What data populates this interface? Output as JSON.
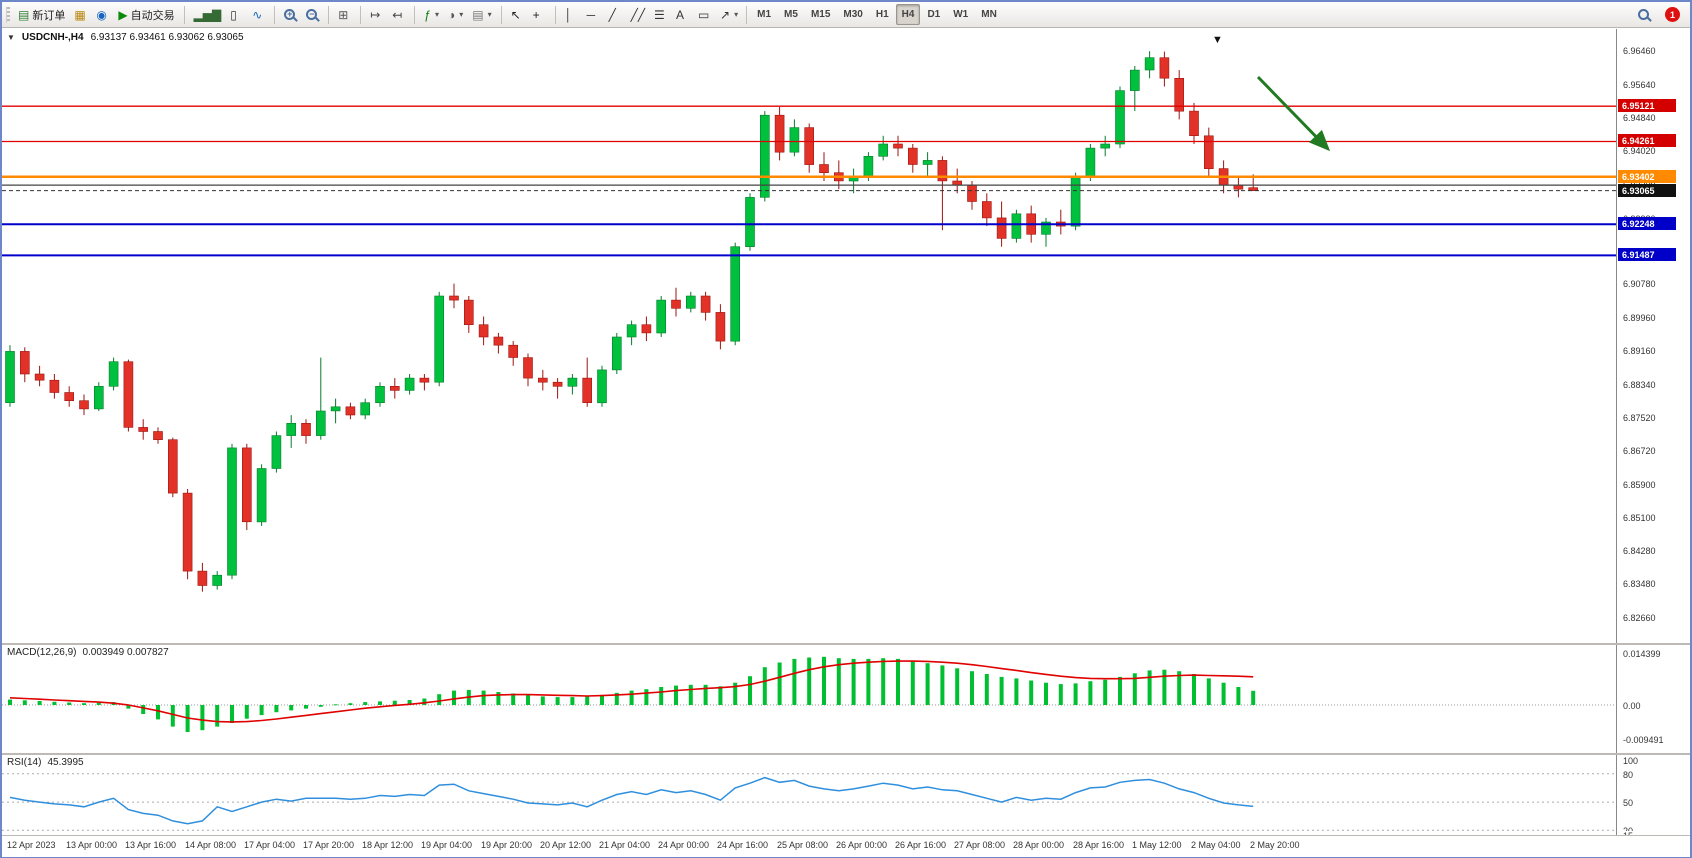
{
  "toolbar": {
    "groups": [
      {
        "buttons": [
          {
            "name": "new-order-button",
            "glyph": "▤",
            "glyph_color": "#2e7d32",
            "label": "新订单"
          },
          {
            "name": "chart-windows-button",
            "glyph": "▦",
            "glyph_color": "#b8860b"
          },
          {
            "name": "market-watch-button",
            "glyph": "◉",
            "glyph_color": "#1565c0"
          },
          {
            "name": "auto-trading-button",
            "glyph": "▶",
            "glyph_color": "#0a8a0a",
            "label": "自动交易"
          }
        ]
      },
      {
        "buttons": [
          {
            "name": "bar-chart-button",
            "glyph": "▂▅▇",
            "glyph_color": "#356a35"
          },
          {
            "name": "candlestick-chart-button",
            "glyph": "▯",
            "glyph_color": "#333"
          },
          {
            "name": "line-chart-button",
            "glyph": "∿",
            "glyph_color": "#1565c0"
          }
        ]
      },
      {
        "buttons": [
          {
            "name": "zoom-in-button",
            "mag": "+"
          },
          {
            "name": "zoom-out-button",
            "mag": "−"
          }
        ]
      },
      {
        "buttons": [
          {
            "name": "tile-windows-button",
            "glyph": "⊞",
            "glyph_color": "#555"
          }
        ]
      },
      {
        "buttons": [
          {
            "name": "auto-scroll-button",
            "glyph": "↦",
            "glyph_color": "#444"
          },
          {
            "name": "chart-shift-button",
            "glyph": "↤",
            "glyph_color": "#444"
          }
        ]
      },
      {
        "buttons": [
          {
            "name": "indicators-button",
            "glyph": "ƒ",
            "glyph_color": "#0a7a0a",
            "dropdown": true
          },
          {
            "name": "periods-button",
            "glyph": "◑",
            "glyph_color": "#555",
            "dropdown": true
          },
          {
            "name": "templates-button",
            "glyph": "▤",
            "glyph_color": "#777",
            "dropdown": true
          }
        ]
      },
      {
        "buttons": [
          {
            "name": "cursor-button",
            "glyph": "↖",
            "glyph_color": "#222"
          },
          {
            "name": "crosshair-button",
            "glyph": "+",
            "glyph_color": "#222"
          }
        ]
      },
      {
        "buttons": [
          {
            "name": "vertical-line-button",
            "glyph": "│",
            "glyph_color": "#333"
          },
          {
            "name": "horizontal-line-button",
            "glyph": "─",
            "glyph_color": "#333"
          },
          {
            "name": "trendline-button",
            "glyph": "╱",
            "glyph_color": "#333"
          },
          {
            "name": "channel-button",
            "glyph": "╱╱",
            "glyph_color": "#333"
          },
          {
            "name": "fibonacci-button",
            "glyph": "☰",
            "glyph_color": "#333"
          },
          {
            "name": "text-button",
            "glyph": "A",
            "glyph_color": "#333"
          },
          {
            "name": "label-button",
            "glyph": "▭",
            "glyph_color": "#333"
          },
          {
            "name": "shapes-button",
            "glyph": "↗",
            "glyph_color": "#333",
            "dropdown": true
          }
        ]
      }
    ],
    "timeframes": [
      "M1",
      "M5",
      "M15",
      "M30",
      "H1",
      "H4",
      "D1",
      "W1",
      "MN"
    ],
    "active_timeframe": "H4",
    "notification_count": "1"
  },
  "chart_header": {
    "caret": "▼",
    "symbol": "USDCNH-,H4",
    "ohlc": "6.93137 6.93461 6.93062 6.93065"
  },
  "colors": {
    "bull": "#00c13e",
    "bull_wick": "#067c2c",
    "bear": "#e23127",
    "bear_wick": "#9c1510",
    "macd_histogram": "#00bf30",
    "macd_signal": "#e00000",
    "rsi_line": "#2f8fdd",
    "hline_red": "#e00000",
    "hline_orange": "#ff8a00",
    "hline_blue": "#0000cc",
    "hline_gray": "#444444",
    "current_price_badge": "#111111",
    "trend_arrow": "#217a21"
  },
  "chart_data": {
    "type": "candlestick",
    "symbol": "USDCNH",
    "timeframe": "H4",
    "price_range": [
      6.8205,
      6.97
    ],
    "price_ticks": [
      "6.96460",
      "6.95640",
      "6.94840",
      "6.94020",
      "6.93200",
      "6.92380",
      "6.91560",
      "6.90780",
      "6.89960",
      "6.89160",
      "6.88340",
      "6.87520",
      "6.86720",
      "6.85900",
      "6.85100",
      "6.84280",
      "6.83480",
      "6.82660"
    ],
    "hlines": [
      {
        "price": 6.95121,
        "label": "6.95121",
        "color": "#e00000",
        "badge": "#d40000",
        "width": 1.3
      },
      {
        "price": 6.94261,
        "label": "6.94261",
        "color": "#e00000",
        "badge": "#d40000",
        "width": 1.3
      },
      {
        "price": 6.93402,
        "label": "6.93402",
        "color": "#ff8a00",
        "badge": "#ff8a00",
        "width": 2.5
      },
      {
        "price": 6.932,
        "label": null,
        "color": "#444444",
        "width": 1.3
      },
      {
        "price": 6.92248,
        "label": "6.92248",
        "color": "#0000cc",
        "badge": "#0000c8",
        "width": 2
      },
      {
        "price": 6.91487,
        "label": "6.91487",
        "color": "#0000cc",
        "badge": "#0000c8",
        "width": 2
      }
    ],
    "current_price": {
      "value": 6.93065,
      "label": "6.93065"
    },
    "high_marker": "▼",
    "trend_arrow": {
      "color": "#217a21"
    },
    "candles": [
      [
        6.879,
        6.893,
        6.878,
        6.8915
      ],
      [
        6.8915,
        6.8925,
        6.884,
        6.886
      ],
      [
        6.886,
        6.888,
        6.883,
        6.8845
      ],
      [
        6.8845,
        6.886,
        6.88,
        6.8815
      ],
      [
        6.8815,
        6.883,
        6.878,
        6.8795
      ],
      [
        6.8795,
        6.881,
        6.876,
        6.8775
      ],
      [
        6.8775,
        6.884,
        6.877,
        6.883
      ],
      [
        6.883,
        6.89,
        6.882,
        6.889
      ],
      [
        6.889,
        6.8895,
        6.872,
        6.873
      ],
      [
        6.873,
        6.875,
        6.87,
        6.872
      ],
      [
        6.872,
        6.873,
        6.869,
        6.87
      ],
      [
        6.87,
        6.8705,
        6.856,
        6.857
      ],
      [
        6.857,
        6.858,
        6.836,
        6.838
      ],
      [
        6.838,
        6.84,
        6.833,
        6.8345
      ],
      [
        6.8345,
        6.838,
        6.8335,
        6.837
      ],
      [
        6.837,
        6.869,
        6.836,
        6.868
      ],
      [
        6.868,
        6.869,
        6.848,
        6.85
      ],
      [
        6.85,
        6.864,
        6.849,
        6.863
      ],
      [
        6.863,
        6.872,
        6.862,
        6.871
      ],
      [
        6.871,
        6.876,
        6.868,
        6.874
      ],
      [
        6.874,
        6.875,
        6.869,
        6.871
      ],
      [
        6.871,
        6.89,
        6.87,
        6.877
      ],
      [
        6.877,
        6.88,
        6.874,
        6.878
      ],
      [
        6.878,
        6.879,
        6.875,
        6.876
      ],
      [
        6.876,
        6.88,
        6.875,
        6.879
      ],
      [
        6.879,
        6.884,
        6.878,
        6.883
      ],
      [
        6.883,
        6.885,
        6.88,
        6.882
      ],
      [
        6.882,
        6.886,
        6.881,
        6.885
      ],
      [
        6.885,
        6.886,
        6.882,
        6.884
      ],
      [
        6.884,
        6.906,
        6.883,
        6.905
      ],
      [
        6.905,
        6.908,
        6.902,
        6.904
      ],
      [
        6.904,
        6.905,
        6.896,
        6.898
      ],
      [
        6.898,
        6.9,
        6.893,
        6.895
      ],
      [
        6.895,
        6.896,
        6.891,
        6.893
      ],
      [
        6.893,
        6.894,
        6.888,
        6.89
      ],
      [
        6.89,
        6.891,
        6.883,
        6.885
      ],
      [
        6.885,
        6.887,
        6.882,
        6.884
      ],
      [
        6.884,
        6.885,
        6.88,
        6.883
      ],
      [
        6.883,
        6.886,
        6.881,
        6.885
      ],
      [
        6.885,
        6.89,
        6.878,
        6.879
      ],
      [
        6.879,
        6.888,
        6.878,
        6.887
      ],
      [
        6.887,
        6.896,
        6.886,
        6.895
      ],
      [
        6.895,
        6.899,
        6.893,
        6.898
      ],
      [
        6.898,
        6.9,
        6.894,
        6.896
      ],
      [
        6.896,
        6.905,
        6.895,
        6.904
      ],
      [
        6.904,
        6.907,
        6.9,
        6.902
      ],
      [
        6.902,
        6.906,
        6.901,
        6.905
      ],
      [
        6.905,
        6.906,
        6.899,
        6.901
      ],
      [
        6.901,
        6.903,
        6.892,
        6.894
      ],
      [
        6.894,
        6.918,
        6.893,
        6.917
      ],
      [
        6.917,
        6.93,
        6.916,
        6.929
      ],
      [
        6.929,
        6.95,
        6.928,
        6.949
      ],
      [
        6.949,
        6.951,
        6.938,
        6.94
      ],
      [
        6.94,
        6.948,
        6.939,
        6.946
      ],
      [
        6.946,
        6.947,
        6.935,
        6.937
      ],
      [
        6.937,
        6.94,
        6.933,
        6.935
      ],
      [
        6.935,
        6.938,
        6.931,
        6.933
      ],
      [
        6.933,
        6.936,
        6.93,
        6.934
      ],
      [
        6.934,
        6.94,
        6.933,
        6.939
      ],
      [
        6.939,
        6.944,
        6.938,
        6.942
      ],
      [
        6.942,
        6.944,
        6.939,
        6.941
      ],
      [
        6.941,
        6.942,
        6.935,
        6.937
      ],
      [
        6.937,
        6.94,
        6.934,
        6.938
      ],
      [
        6.938,
        6.939,
        6.921,
        6.933
      ],
      [
        6.933,
        6.936,
        6.93,
        6.932
      ],
      [
        6.932,
        6.933,
        6.926,
        6.928
      ],
      [
        6.928,
        6.93,
        6.922,
        6.924
      ],
      [
        6.924,
        6.928,
        6.917,
        6.919
      ],
      [
        6.919,
        6.926,
        6.918,
        6.925
      ],
      [
        6.925,
        6.927,
        6.918,
        6.92
      ],
      [
        6.92,
        6.924,
        6.917,
        6.923
      ],
      [
        6.923,
        6.926,
        6.92,
        6.922
      ],
      [
        6.922,
        6.935,
        6.921,
        6.934
      ],
      [
        6.934,
        6.942,
        6.933,
        6.941
      ],
      [
        6.941,
        6.944,
        6.939,
        6.942
      ],
      [
        6.942,
        6.956,
        6.941,
        6.955
      ],
      [
        6.955,
        6.961,
        6.95,
        6.96
      ],
      [
        6.96,
        6.9646,
        6.958,
        6.963
      ],
      [
        6.963,
        6.9645,
        6.956,
        6.958
      ],
      [
        6.958,
        6.96,
        6.948,
        6.95
      ],
      [
        6.95,
        6.952,
        6.942,
        6.944
      ],
      [
        6.944,
        6.946,
        6.934,
        6.936
      ],
      [
        6.936,
        6.938,
        6.93,
        6.932
      ],
      [
        6.932,
        6.934,
        6.929,
        6.931
      ],
      [
        6.93137,
        6.93461,
        6.93062,
        6.93065
      ]
    ],
    "macd": {
      "name": "MACD(12,26,9)",
      "values_label": "0.003949 0.007827",
      "axis": [
        "0.014399",
        "0.00",
        "-0.009491"
      ],
      "histogram": [
        0.0015,
        0.0013,
        0.0011,
        0.0009,
        0.0007,
        0.0005,
        0.0006,
        0.0008,
        -0.001,
        -0.0025,
        -0.004,
        -0.006,
        -0.0075,
        -0.007,
        -0.006,
        -0.005,
        -0.0038,
        -0.0028,
        -0.002,
        -0.0015,
        -0.001,
        -0.0005,
        0.0002,
        0.0005,
        0.0008,
        0.001,
        0.0012,
        0.0014,
        0.0018,
        0.003,
        0.004,
        0.0042,
        0.004,
        0.0036,
        0.0032,
        0.0028,
        0.0024,
        0.0022,
        0.0022,
        0.0024,
        0.0028,
        0.0034,
        0.004,
        0.0044,
        0.005,
        0.0054,
        0.0056,
        0.0056,
        0.0052,
        0.0062,
        0.008,
        0.0105,
        0.0118,
        0.0128,
        0.0132,
        0.0134,
        0.013,
        0.0128,
        0.0128,
        0.013,
        0.0128,
        0.0122,
        0.0116,
        0.011,
        0.0102,
        0.0094,
        0.0086,
        0.0078,
        0.0074,
        0.0068,
        0.0062,
        0.0058,
        0.006,
        0.0066,
        0.007,
        0.0078,
        0.0088,
        0.0096,
        0.0098,
        0.0094,
        0.0086,
        0.0074,
        0.0062,
        0.005,
        0.003949
      ],
      "signal": [
        0.002,
        0.0018,
        0.0016,
        0.0014,
        0.0012,
        0.001,
        0.0008,
        0.0005,
        0.0,
        -0.0008,
        -0.0016,
        -0.0026,
        -0.0036,
        -0.0042,
        -0.0046,
        -0.0047,
        -0.0046,
        -0.0043,
        -0.0039,
        -0.0034,
        -0.0029,
        -0.0024,
        -0.0019,
        -0.0014,
        -0.0009,
        -0.0005,
        -0.0001,
        0.0002,
        0.0006,
        0.0011,
        0.0017,
        0.0022,
        0.0026,
        0.0028,
        0.0029,
        0.0029,
        0.0028,
        0.0027,
        0.0026,
        0.0025,
        0.0026,
        0.0028,
        0.003,
        0.0033,
        0.0036,
        0.004,
        0.0043,
        0.0046,
        0.0048,
        0.0051,
        0.0057,
        0.0066,
        0.0077,
        0.0088,
        0.0098,
        0.0106,
        0.0112,
        0.0116,
        0.0119,
        0.0121,
        0.0122,
        0.0122,
        0.0121,
        0.0119,
        0.0116,
        0.0112,
        0.0107,
        0.0101,
        0.0096,
        0.009,
        0.0085,
        0.008,
        0.0076,
        0.0074,
        0.0073,
        0.0073,
        0.0074,
        0.0077,
        0.008,
        0.0082,
        0.0083,
        0.0082,
        0.0081,
        0.008,
        0.007827
      ]
    },
    "rsi": {
      "name": "RSI(14)",
      "value_label": "45.3995",
      "axis": [
        "100",
        "80",
        "50",
        "20",
        "15"
      ],
      "levels": [
        80,
        50,
        20
      ],
      "values": [
        55,
        52,
        50,
        48,
        47,
        45,
        50,
        54,
        42,
        38,
        36,
        30,
        27,
        30,
        45,
        40,
        45,
        50,
        53,
        51,
        54,
        54,
        54,
        53,
        54,
        57,
        56,
        58,
        57,
        68,
        69,
        62,
        59,
        56,
        53,
        49,
        48,
        47,
        49,
        45,
        52,
        58,
        61,
        58,
        63,
        60,
        62,
        58,
        52,
        65,
        70,
        76,
        71,
        73,
        67,
        64,
        62,
        64,
        67,
        70,
        68,
        64,
        66,
        63,
        62,
        58,
        54,
        50,
        55,
        52,
        54,
        53,
        60,
        65,
        66,
        71,
        73,
        74,
        70,
        64,
        60,
        54,
        49,
        47,
        45.4
      ]
    },
    "time_labels": [
      "12 Apr 2023",
      "13 Apr 00:00",
      "13 Apr 16:00",
      "14 Apr 08:00",
      "17 Apr 04:00",
      "17 Apr 20:00",
      "18 Apr 12:00",
      "19 Apr 04:00",
      "19 Apr 20:00",
      "20 Apr 12:00",
      "21 Apr 04:00",
      "24 Apr 00:00",
      "24 Apr 16:00",
      "25 Apr 08:00",
      "26 Apr 00:00",
      "26 Apr 16:00",
      "27 Apr 08:00",
      "28 Apr 00:00",
      "28 Apr 16:00",
      "1 May 12:00",
      "2 May 04:00",
      "2 May 20:00"
    ]
  }
}
